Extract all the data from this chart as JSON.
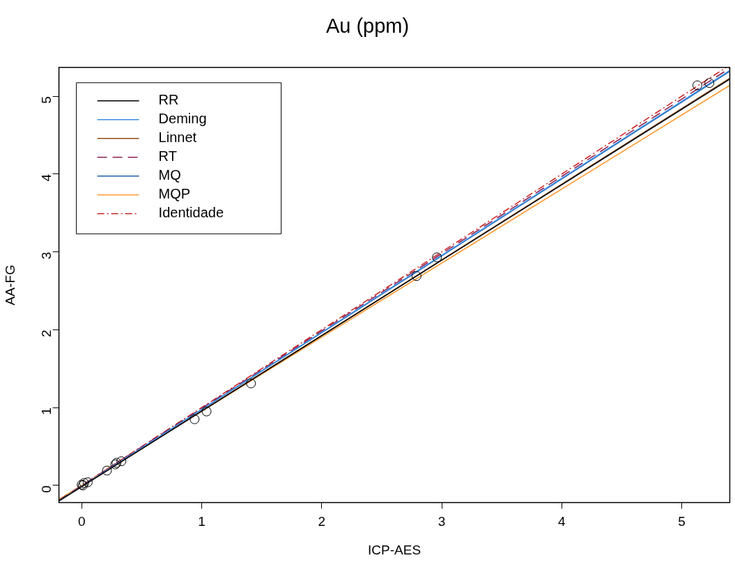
{
  "chart_data": {
    "type": "scatter",
    "title": "Au (ppm)",
    "xlabel": "ICP-AES",
    "ylabel": "AA-FG",
    "xlim": [
      -0.19,
      5.4
    ],
    "ylim": [
      -0.22,
      5.37
    ],
    "xticks": [
      0,
      1,
      2,
      3,
      4,
      5
    ],
    "yticks": [
      0,
      1,
      2,
      3,
      4,
      5
    ],
    "grid": false,
    "legend": "top left",
    "marker": "circle",
    "series": [
      {
        "color": "#000000",
        "x": [
          0.0,
          0.01,
          0.02,
          0.05,
          0.21,
          0.28,
          0.29,
          0.33,
          0.94,
          1.04,
          1.41,
          2.79,
          2.96,
          5.13,
          5.23
        ],
        "values": [
          0.01,
          0.0,
          0.03,
          0.04,
          0.19,
          0.27,
          0.29,
          0.31,
          0.85,
          0.95,
          1.31,
          2.69,
          2.93,
          5.14,
          5.17
        ]
      },
      {
        "type": "line",
        "name": "RR",
        "color": "#000000",
        "line_style": "solid",
        "marker": "none",
        "x": [
          -0.19,
          5.4
        ],
        "values": [
          -0.2,
          5.22
        ]
      },
      {
        "type": "line",
        "name": "Deming",
        "color": "#3a8ee6",
        "line_style": "solid",
        "marker": "none",
        "x": [
          -0.19,
          5.4
        ],
        "values": [
          -0.2,
          5.33
        ]
      },
      {
        "type": "line",
        "name": "Linnet",
        "color": "#8b4a13",
        "line_style": "solid",
        "marker": "none",
        "x": [
          -0.19,
          5.4
        ],
        "values": [
          -0.2,
          5.23
        ]
      },
      {
        "type": "line",
        "name": "RT",
        "color": "#8b2252",
        "line_style": "dashed",
        "marker": "none",
        "x": [
          -0.19,
          5.4
        ],
        "values": [
          -0.19,
          5.36
        ]
      },
      {
        "type": "line",
        "name": "MQ",
        "color": "#1f5fa8",
        "line_style": "solid",
        "marker": "none",
        "x": [
          -0.19,
          5.4
        ],
        "values": [
          -0.2,
          5.32
        ]
      },
      {
        "type": "line",
        "name": "MQP",
        "color": "#ff9a33",
        "line_style": "solid",
        "marker": "none",
        "x": [
          -0.19,
          5.4
        ],
        "values": [
          -0.18,
          5.14
        ]
      },
      {
        "type": "line",
        "name": "Identidade",
        "color": "#cd2626",
        "line_style": "dashdot",
        "marker": "none",
        "x": [
          -0.19,
          5.37
        ],
        "values": [
          -0.19,
          5.37
        ]
      }
    ]
  }
}
